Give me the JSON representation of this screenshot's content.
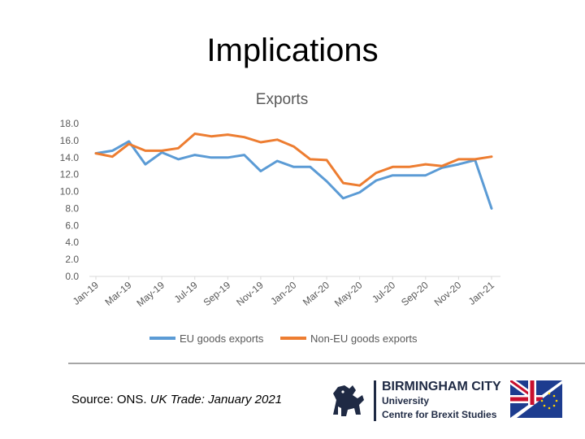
{
  "slide": {
    "title": "Implications",
    "source_prefix": "Source: ONS. ",
    "source_title": "UK Trade: January 2021"
  },
  "logo": {
    "line1": "BIRMINGHAM CITY",
    "line2": "University",
    "line3": "Centre for Brexit Studies"
  },
  "colors": {
    "eu": "#5b9bd5",
    "non_eu": "#ed7d31",
    "axis": "#d9d9d9",
    "text": "#595959"
  },
  "chart_data": {
    "type": "line",
    "title": "Exports",
    "xlabel": "",
    "ylabel": "",
    "ylim": [
      0,
      18
    ],
    "yticks": [
      "0.0",
      "2.0",
      "4.0",
      "6.0",
      "8.0",
      "10.0",
      "12.0",
      "14.0",
      "16.0",
      "18.0"
    ],
    "x": [
      "Jan-19",
      "Feb-19",
      "Mar-19",
      "Apr-19",
      "May-19",
      "Jun-19",
      "Jul-19",
      "Aug-19",
      "Sep-19",
      "Oct-19",
      "Nov-19",
      "Dec-19",
      "Jan-20",
      "Feb-20",
      "Mar-20",
      "Apr-20",
      "May-20",
      "Jun-20",
      "Jul-20",
      "Aug-20",
      "Sep-20",
      "Oct-20",
      "Nov-20",
      "Dec-20",
      "Jan-21"
    ],
    "x_tick_labels": [
      "Jan-19",
      "Mar-19",
      "May-19",
      "Jul-19",
      "Sep-19",
      "Nov-19",
      "Jan-20",
      "Mar-20",
      "May-20",
      "Jul-20",
      "Sep-20",
      "Nov-20",
      "Jan-21"
    ],
    "legend_position": "bottom",
    "grid": false,
    "series": [
      {
        "name": "EU goods exports",
        "color": "#5b9bd5",
        "values": [
          14.5,
          14.8,
          15.9,
          13.2,
          14.6,
          13.8,
          14.3,
          14.0,
          14.0,
          14.3,
          12.4,
          13.6,
          12.9,
          12.9,
          11.2,
          9.2,
          9.9,
          11.3,
          11.9,
          11.9,
          11.9,
          12.8,
          13.2,
          13.7,
          8.0
        ]
      },
      {
        "name": "Non-EU goods exports",
        "color": "#ed7d31",
        "values": [
          14.5,
          14.1,
          15.6,
          14.8,
          14.8,
          15.1,
          16.8,
          16.5,
          16.7,
          16.4,
          15.8,
          16.1,
          15.3,
          13.8,
          13.7,
          11.0,
          10.7,
          12.2,
          12.9,
          12.9,
          13.2,
          13.0,
          13.8,
          13.8,
          14.1
        ]
      }
    ]
  }
}
